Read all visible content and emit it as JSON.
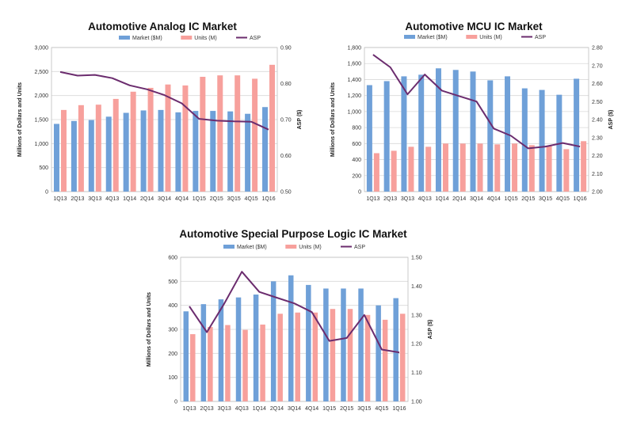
{
  "legend_labels": [
    "Market ($M)",
    "Units (M)",
    "ASP"
  ],
  "colors": {
    "market": "#6fa0d8",
    "units": "#f7a09c",
    "asp": "#6b2c6e"
  },
  "chart_data": [
    {
      "type": "bar",
      "title": "Automotive Analog IC Market",
      "ylabel": "Millions of Dollars and Units",
      "y2label": "ASP ($)",
      "categories": [
        "1Q13",
        "2Q13",
        "3Q13",
        "4Q13",
        "1Q14",
        "2Q14",
        "3Q14",
        "4Q14",
        "1Q15",
        "2Q15",
        "3Q15",
        "4Q15",
        "1Q16"
      ],
      "ylim": [
        0,
        3000
      ],
      "yticks": [
        0,
        500,
        1000,
        1500,
        2000,
        2500,
        3000
      ],
      "ytick_labels": [
        "0",
        "500",
        "1,000",
        "1,500",
        "2,000",
        "2,500",
        "3,000"
      ],
      "y2lim": [
        0.5,
        0.9
      ],
      "y2ticks": [
        0.5,
        0.6,
        0.7,
        0.8,
        0.9
      ],
      "y2tick_labels": [
        "0.50",
        "0.60",
        "0.70",
        "0.80",
        "0.90"
      ],
      "series": [
        {
          "name": "Market ($M)",
          "values": [
            1410,
            1470,
            1490,
            1560,
            1640,
            1690,
            1700,
            1650,
            1680,
            1680,
            1670,
            1620,
            1760
          ]
        },
        {
          "name": "Units (M)",
          "values": [
            1700,
            1800,
            1810,
            1930,
            2080,
            2160,
            2230,
            2210,
            2390,
            2420,
            2420,
            2350,
            2640
          ]
        },
        {
          "name": "ASP",
          "values": [
            0.832,
            0.822,
            0.824,
            0.815,
            0.795,
            0.784,
            0.768,
            0.745,
            0.702,
            0.697,
            0.695,
            0.694,
            0.672
          ],
          "axis": "right",
          "kind": "line"
        }
      ],
      "grid": true,
      "legend": "top"
    },
    {
      "type": "bar",
      "title": "Automotive MCU IC Market",
      "ylabel": "Millions of Dollars and Units",
      "y2label": "ASP ($)",
      "categories": [
        "1Q13",
        "2Q13",
        "3Q13",
        "4Q13",
        "1Q14",
        "2Q14",
        "3Q14",
        "4Q14",
        "1Q15",
        "2Q15",
        "3Q15",
        "4Q15",
        "1Q16"
      ],
      "ylim": [
        0,
        1800
      ],
      "yticks": [
        0,
        200,
        400,
        600,
        800,
        1000,
        1200,
        1400,
        1600,
        1800
      ],
      "ytick_labels": [
        "0",
        "200",
        "400",
        "600",
        "800",
        "1,000",
        "1,200",
        "1,400",
        "1,600",
        "1,800"
      ],
      "y2lim": [
        2.0,
        2.8
      ],
      "y2ticks": [
        2.0,
        2.1,
        2.2,
        2.3,
        2.4,
        2.5,
        2.6,
        2.7,
        2.8
      ],
      "y2tick_labels": [
        "2.00",
        "2.10",
        "2.20",
        "2.30",
        "2.40",
        "2.50",
        "2.60",
        "2.70",
        "2.80"
      ],
      "series": [
        {
          "name": "Market ($M)",
          "values": [
            1330,
            1380,
            1440,
            1460,
            1540,
            1520,
            1500,
            1390,
            1440,
            1290,
            1270,
            1210,
            1410
          ]
        },
        {
          "name": "Units (M)",
          "values": [
            480,
            510,
            560,
            560,
            600,
            600,
            600,
            590,
            600,
            580,
            570,
            530,
            630
          ]
        },
        {
          "name": "ASP",
          "values": [
            2.76,
            2.69,
            2.54,
            2.65,
            2.56,
            2.53,
            2.5,
            2.35,
            2.31,
            2.24,
            2.25,
            2.27,
            2.25
          ],
          "axis": "right",
          "kind": "line"
        }
      ],
      "grid": true,
      "legend": "top"
    },
    {
      "type": "bar",
      "title": "Automotive Special Purpose Logic IC Market",
      "ylabel": "Millions of Dollars and Units",
      "y2label": "ASP ($)",
      "categories": [
        "1Q13",
        "2Q13",
        "3Q13",
        "4Q13",
        "1Q14",
        "2Q14",
        "3Q14",
        "4Q14",
        "1Q15",
        "2Q15",
        "3Q15",
        "4Q15",
        "1Q16"
      ],
      "ylim": [
        0,
        600
      ],
      "yticks": [
        0,
        100,
        200,
        300,
        400,
        500,
        600
      ],
      "ytick_labels": [
        "0",
        "100",
        "200",
        "300",
        "400",
        "500",
        "600"
      ],
      "y2lim": [
        1.0,
        1.5
      ],
      "y2ticks": [
        1.0,
        1.1,
        1.2,
        1.3,
        1.4,
        1.5
      ],
      "y2tick_labels": [
        "1.00",
        "1.10",
        "1.20",
        "1.30",
        "1.40",
        "1.50"
      ],
      "series": [
        {
          "name": "Market ($M)",
          "values": [
            375,
            405,
            425,
            433,
            445,
            500,
            525,
            485,
            470,
            470,
            470,
            400,
            430
          ]
        },
        {
          "name": "Units (M)",
          "values": [
            280,
            310,
            318,
            298,
            320,
            365,
            370,
            370,
            385,
            385,
            360,
            340,
            365
          ]
        },
        {
          "name": "ASP",
          "values": [
            1.33,
            1.24,
            1.34,
            1.45,
            1.38,
            1.36,
            1.34,
            1.31,
            1.21,
            1.22,
            1.3,
            1.18,
            1.17
          ],
          "axis": "right",
          "kind": "line"
        }
      ],
      "grid": true,
      "legend": "top"
    }
  ]
}
